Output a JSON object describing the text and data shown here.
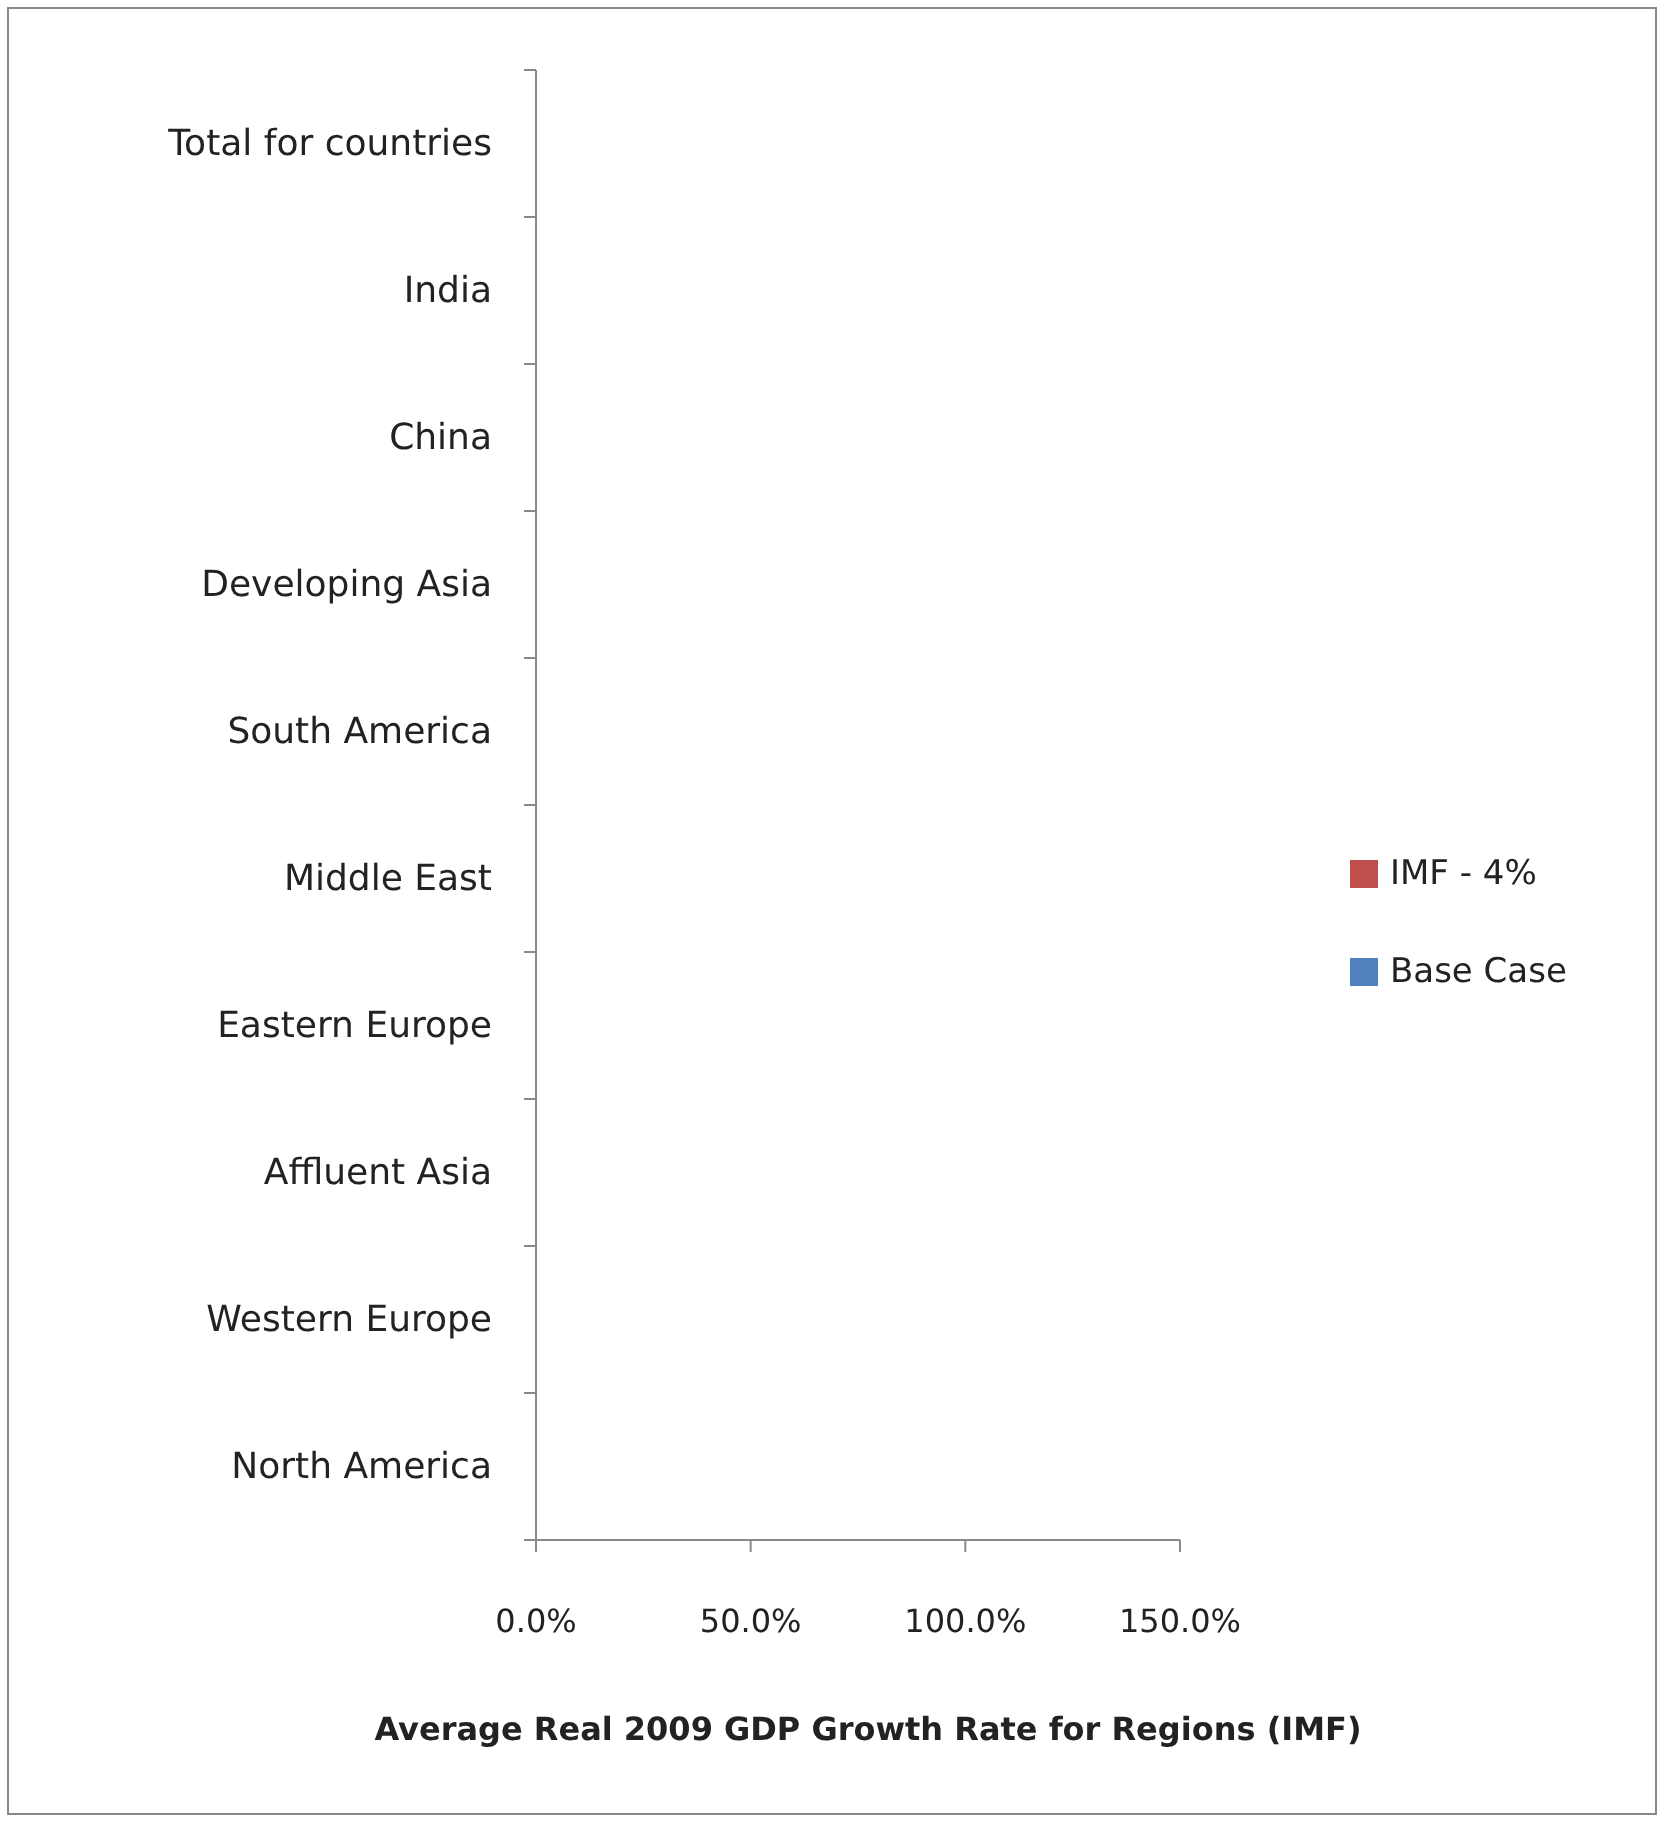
{
  "chart_data": {
    "type": "bar",
    "orientation": "horizontal",
    "xlabel": "Average Real  2009 GDP Growth Rate for Regions   (IMF)",
    "categories": [
      "Total for countries",
      "India",
      "China",
      "Developing Asia",
      "South America",
      "Middle East",
      "Eastern Europe",
      "Affluent Asia",
      "Western Europe",
      "North America"
    ],
    "series": [
      {
        "name": "IMF - 4%",
        "color": "#c0504d",
        "values": [
          null,
          null,
          null,
          null,
          null,
          null,
          null,
          null,
          null,
          null
        ]
      },
      {
        "name": "Base Case",
        "color": "#4f81bd",
        "values": [
          null,
          null,
          null,
          null,
          null,
          null,
          null,
          null,
          null,
          null
        ]
      }
    ],
    "xlim": [
      0,
      150
    ],
    "xticks": [
      {
        "value": 0,
        "label": "0.0%"
      },
      {
        "value": 50,
        "label": "50.0%"
      },
      {
        "value": 100,
        "label": "100.0%"
      },
      {
        "value": 150,
        "label": "150.0%"
      }
    ],
    "grid": false,
    "legend": "right"
  }
}
